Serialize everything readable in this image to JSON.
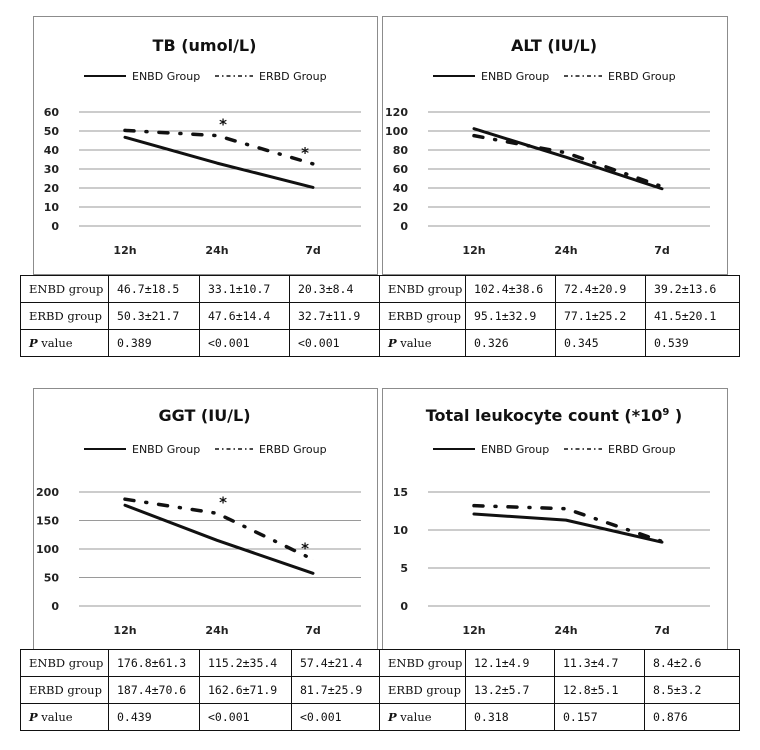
{
  "legend": {
    "enbd": "ENBD Group",
    "erbd": "ERBD Group"
  },
  "table_row_labels": {
    "enbd": "ENBD group",
    "erbd": "ERBD group",
    "p_italic": "P",
    "p_rest": " value"
  },
  "chart_data": [
    {
      "type": "line",
      "title": "TB (umol/L)",
      "categories": [
        "12h",
        "24h",
        "7d"
      ],
      "ylim": [
        0,
        60
      ],
      "yticks": [
        "60",
        "50",
        "40",
        "30",
        "20",
        "10",
        "0"
      ],
      "ytick_values": [
        60,
        50,
        40,
        30,
        20,
        10,
        0
      ],
      "grid": true,
      "legend_position": "top",
      "series": [
        {
          "name": "ENBD Group",
          "values": [
            46.7,
            33.1,
            20.3
          ],
          "style": "solid"
        },
        {
          "name": "ERBD Group",
          "values": [
            50.3,
            47.6,
            32.7
          ],
          "style": "dash-dot"
        }
      ],
      "significance_markers": [
        "",
        "*",
        "*"
      ],
      "table": {
        "enbd": [
          "46.7±18.5",
          "33.1±10.7",
          "20.3±8.4"
        ],
        "erbd": [
          "50.3±21.7",
          "47.6±14.4",
          "32.7±11.9"
        ],
        "p": [
          "0.389",
          "<0.001",
          "<0.001"
        ]
      }
    },
    {
      "type": "line",
      "title": "ALT (IU/L)",
      "categories": [
        "12h",
        "24h",
        "7d"
      ],
      "ylim": [
        0,
        120
      ],
      "yticks": [
        "120",
        "100",
        "80",
        "60",
        "40",
        "20",
        "0"
      ],
      "ytick_values": [
        120,
        100,
        80,
        60,
        40,
        20,
        0
      ],
      "grid": true,
      "legend_position": "top",
      "series": [
        {
          "name": "ENBD Group",
          "values": [
            102.4,
            72.4,
            39.2
          ],
          "style": "solid"
        },
        {
          "name": "ERBD Group",
          "values": [
            95.1,
            77.1,
            41.5
          ],
          "style": "dash-dot"
        }
      ],
      "significance_markers": [
        "",
        "",
        ""
      ],
      "table": {
        "enbd": [
          "102.4±38.6",
          "72.4±20.9",
          "39.2±13.6"
        ],
        "erbd": [
          "95.1±32.9",
          "77.1±25.2",
          "41.5±20.1"
        ],
        "p": [
          "0.326",
          "0.345",
          "0.539"
        ]
      }
    },
    {
      "type": "line",
      "title": "GGT (IU/L)",
      "categories": [
        "12h",
        "24h",
        "7d"
      ],
      "ylim": [
        0,
        200
      ],
      "yticks": [
        "200",
        "150",
        "100",
        "50",
        "0"
      ],
      "ytick_values": [
        200,
        150,
        100,
        50,
        0
      ],
      "grid": true,
      "legend_position": "top",
      "series": [
        {
          "name": "ENBD Group",
          "values": [
            176.8,
            115.2,
            57.4
          ],
          "style": "solid"
        },
        {
          "name": "ERBD Group",
          "values": [
            187.4,
            162.6,
            81.7
          ],
          "style": "dash-dot"
        }
      ],
      "significance_markers": [
        "",
        "*",
        "*"
      ],
      "table": {
        "enbd": [
          "176.8±61.3",
          "115.2±35.4",
          "57.4±21.4"
        ],
        "erbd": [
          "187.4±70.6",
          "162.6±71.9",
          "81.7±25.9"
        ],
        "p": [
          "0.439",
          "<0.001",
          "<0.001"
        ]
      }
    },
    {
      "type": "line",
      "title": "Total leukocyte count (*10",
      "title_sup": "9",
      "title_end": " )",
      "categories": [
        "12h",
        "24h",
        "7d"
      ],
      "ylim": [
        0,
        15
      ],
      "yticks": [
        "15",
        "10",
        "5",
        "0"
      ],
      "ytick_values": [
        15,
        10,
        5,
        0
      ],
      "grid": true,
      "legend_position": "top",
      "series": [
        {
          "name": "ENBD Group",
          "values": [
            12.1,
            11.3,
            8.4
          ],
          "style": "solid"
        },
        {
          "name": "ERBD Group",
          "values": [
            13.2,
            12.8,
            8.5
          ],
          "style": "dash-dot"
        }
      ],
      "significance_markers": [
        "",
        "",
        ""
      ],
      "table": {
        "enbd": [
          "12.1±4.9",
          "11.3±4.7",
          "8.4±2.6"
        ],
        "erbd": [
          "13.2±5.7",
          "12.8±5.1",
          "8.5±3.2"
        ],
        "p": [
          "0.318",
          "0.157",
          "0.876"
        ]
      }
    }
  ]
}
